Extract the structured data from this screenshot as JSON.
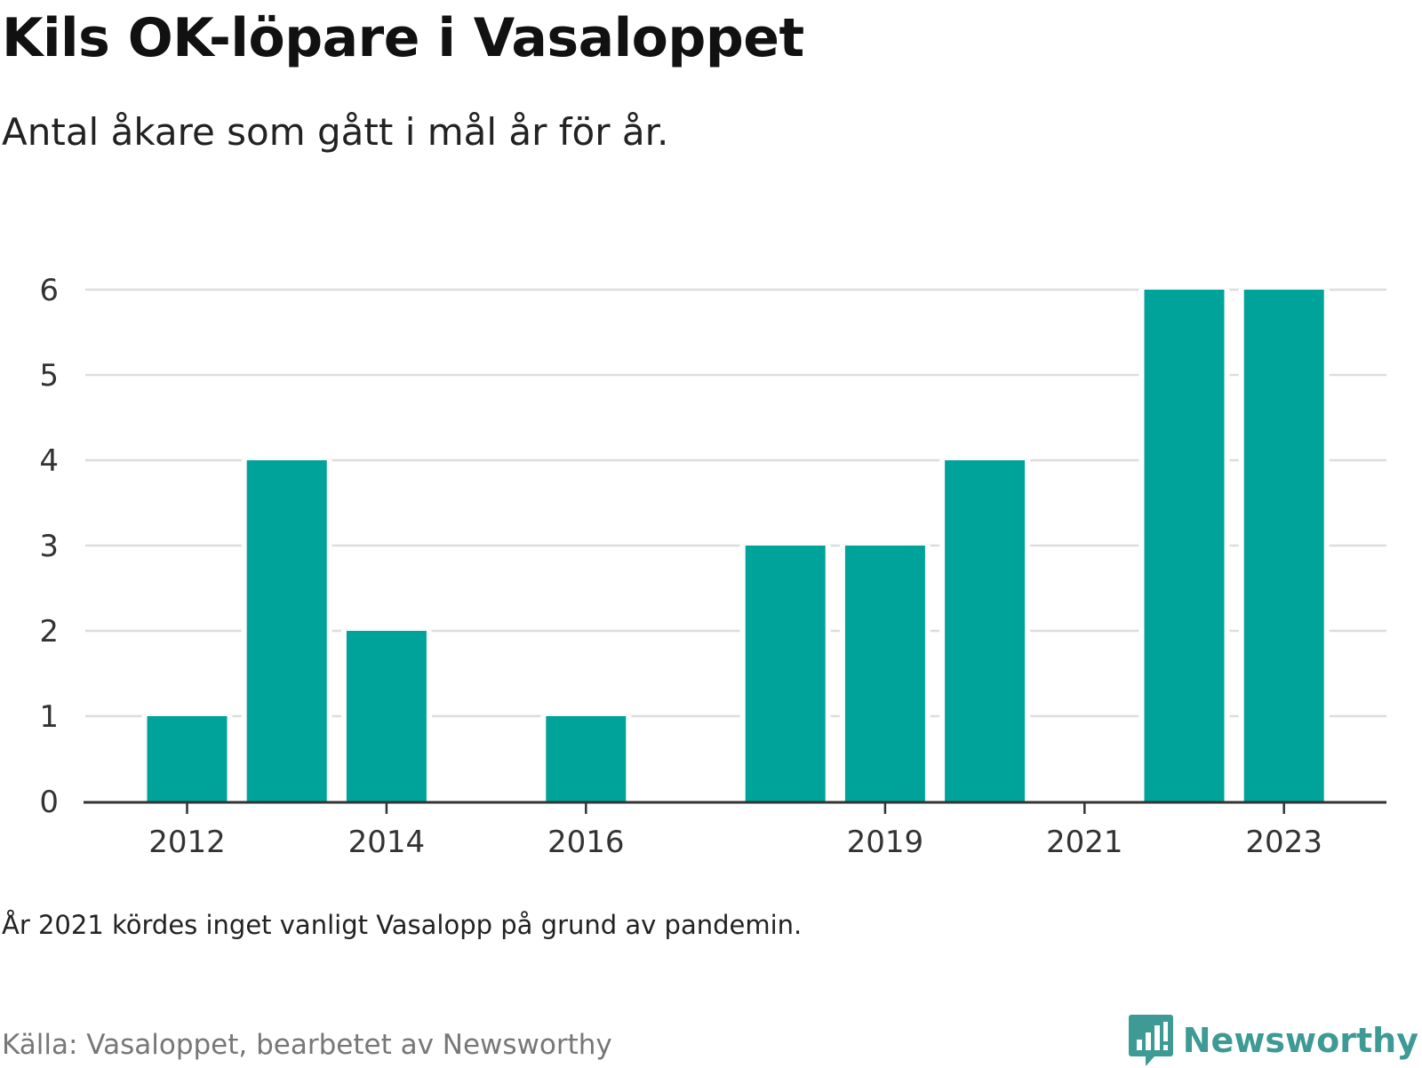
{
  "title": "Kils OK-löpare i Vasaloppet",
  "subtitle": "Antal åkare som gått i mål år för år.",
  "note": "År 2021 kördes inget vanligt Vasalopp på grund av pandemin.",
  "source": "Källa: Vasaloppet, bearbetet av Newsworthy",
  "brand": {
    "name": "Newsworthy",
    "icon": "newsworthy-logo-icon"
  },
  "colors": {
    "bar": "#00a39a",
    "grid": "#dddddd",
    "axis": "#333333",
    "tick_text": "#333333",
    "brand": "#3e9a94"
  },
  "chart_data": {
    "type": "bar",
    "categories": [
      "2012",
      "2013",
      "2014",
      "2015",
      "2016",
      "2017",
      "2018",
      "2019",
      "2020",
      "2021",
      "2022",
      "2023"
    ],
    "values": [
      1,
      4,
      2,
      0,
      1,
      0,
      3,
      3,
      4,
      0,
      6,
      6
    ],
    "x_tick_labels": [
      "2012",
      "2014",
      "2016",
      "2019",
      "2021",
      "2023"
    ],
    "y_ticks": [
      0,
      1,
      2,
      3,
      4,
      5,
      6
    ],
    "ylim": [
      0,
      6
    ],
    "xlabel": "",
    "ylabel": "",
    "grid": true,
    "legend": false
  }
}
